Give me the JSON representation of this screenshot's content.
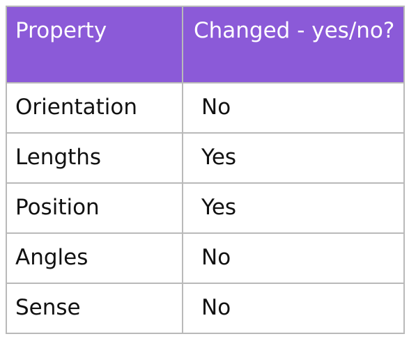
{
  "table": {
    "headers": [
      "Property",
      "Changed - yes/no?"
    ],
    "rows": [
      {
        "property": "Orientation",
        "changed": "No"
      },
      {
        "property": "Lengths",
        "changed": "Yes"
      },
      {
        "property": "Position",
        "changed": "Yes"
      },
      {
        "property": "Angles",
        "changed": "No"
      },
      {
        "property": "Sense",
        "changed": "No"
      }
    ]
  },
  "colors": {
    "header_bg": "#8b5ad8",
    "header_text": "#ffffff",
    "border": "#b9b9b9",
    "cell_text": "#111111"
  }
}
